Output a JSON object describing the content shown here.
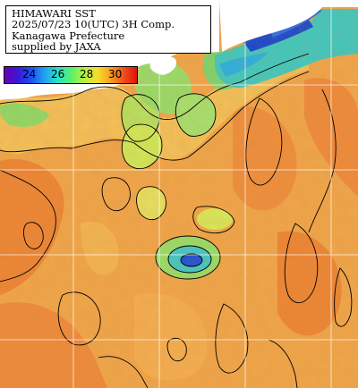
{
  "info": {
    "line1": "HIMAWARI SST",
    "line2": "2025/07/23 10(UTC) 3H Comp.",
    "line3": "Kanagawa Prefecture",
    "line4": "supplied by JAXA"
  },
  "colorbar": {
    "labels": [
      "24",
      "26",
      "28",
      "30"
    ],
    "colors": [
      "#6a00b0",
      "#3a18d8",
      "#1d4ff0",
      "#20a0f0",
      "#28e0c8",
      "#58f070",
      "#b8f040",
      "#f4e02c",
      "#f8a020",
      "#f05018",
      "#e01010"
    ]
  },
  "colors": {
    "sea_base": "#f0a54a",
    "sea_warm": "#ee8a3c",
    "sea_cool": "#f3c05a",
    "coastal_green": "#8ed868",
    "coastal_cyan": "#32c0d8",
    "deep_blue": "#1a48d0",
    "land": "#ffffff",
    "grid": "#ffffff",
    "contour": "#000000"
  }
}
